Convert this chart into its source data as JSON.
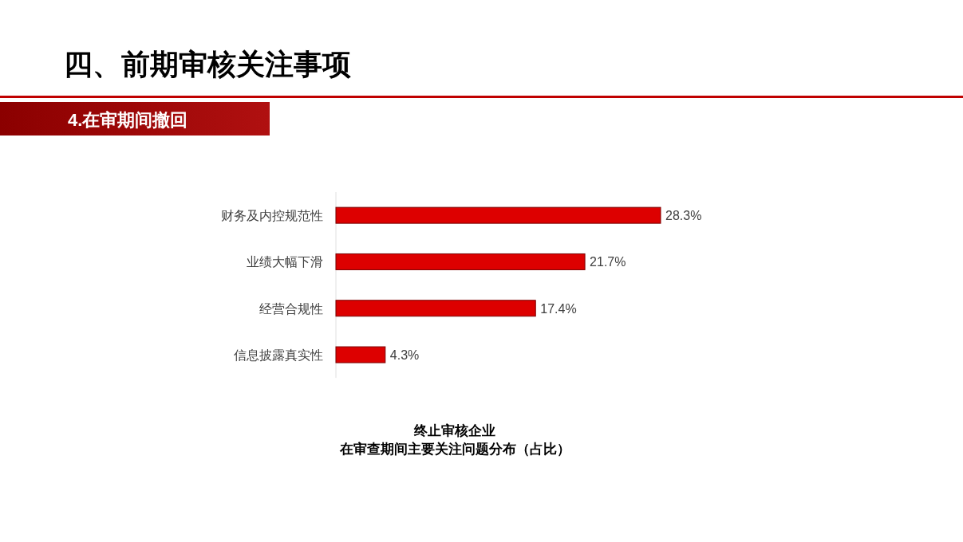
{
  "chart_data": {
    "type": "bar",
    "orientation": "horizontal",
    "title": "四、前期审核关注事项",
    "subtitle": "4.在审期间撤回",
    "categories": [
      "财务及内控规范性",
      "业绩大幅下滑",
      "经营合规性",
      "信息披露真实性"
    ],
    "values": [
      28.3,
      21.7,
      17.4,
      4.3
    ],
    "value_labels": [
      "28.3%",
      "21.7%",
      "17.4%",
      "4.3%"
    ],
    "color": "#dd0000",
    "annotations": [
      "终止审核企业",
      "在审查期间主要关注问题分布（占比）"
    ]
  }
}
